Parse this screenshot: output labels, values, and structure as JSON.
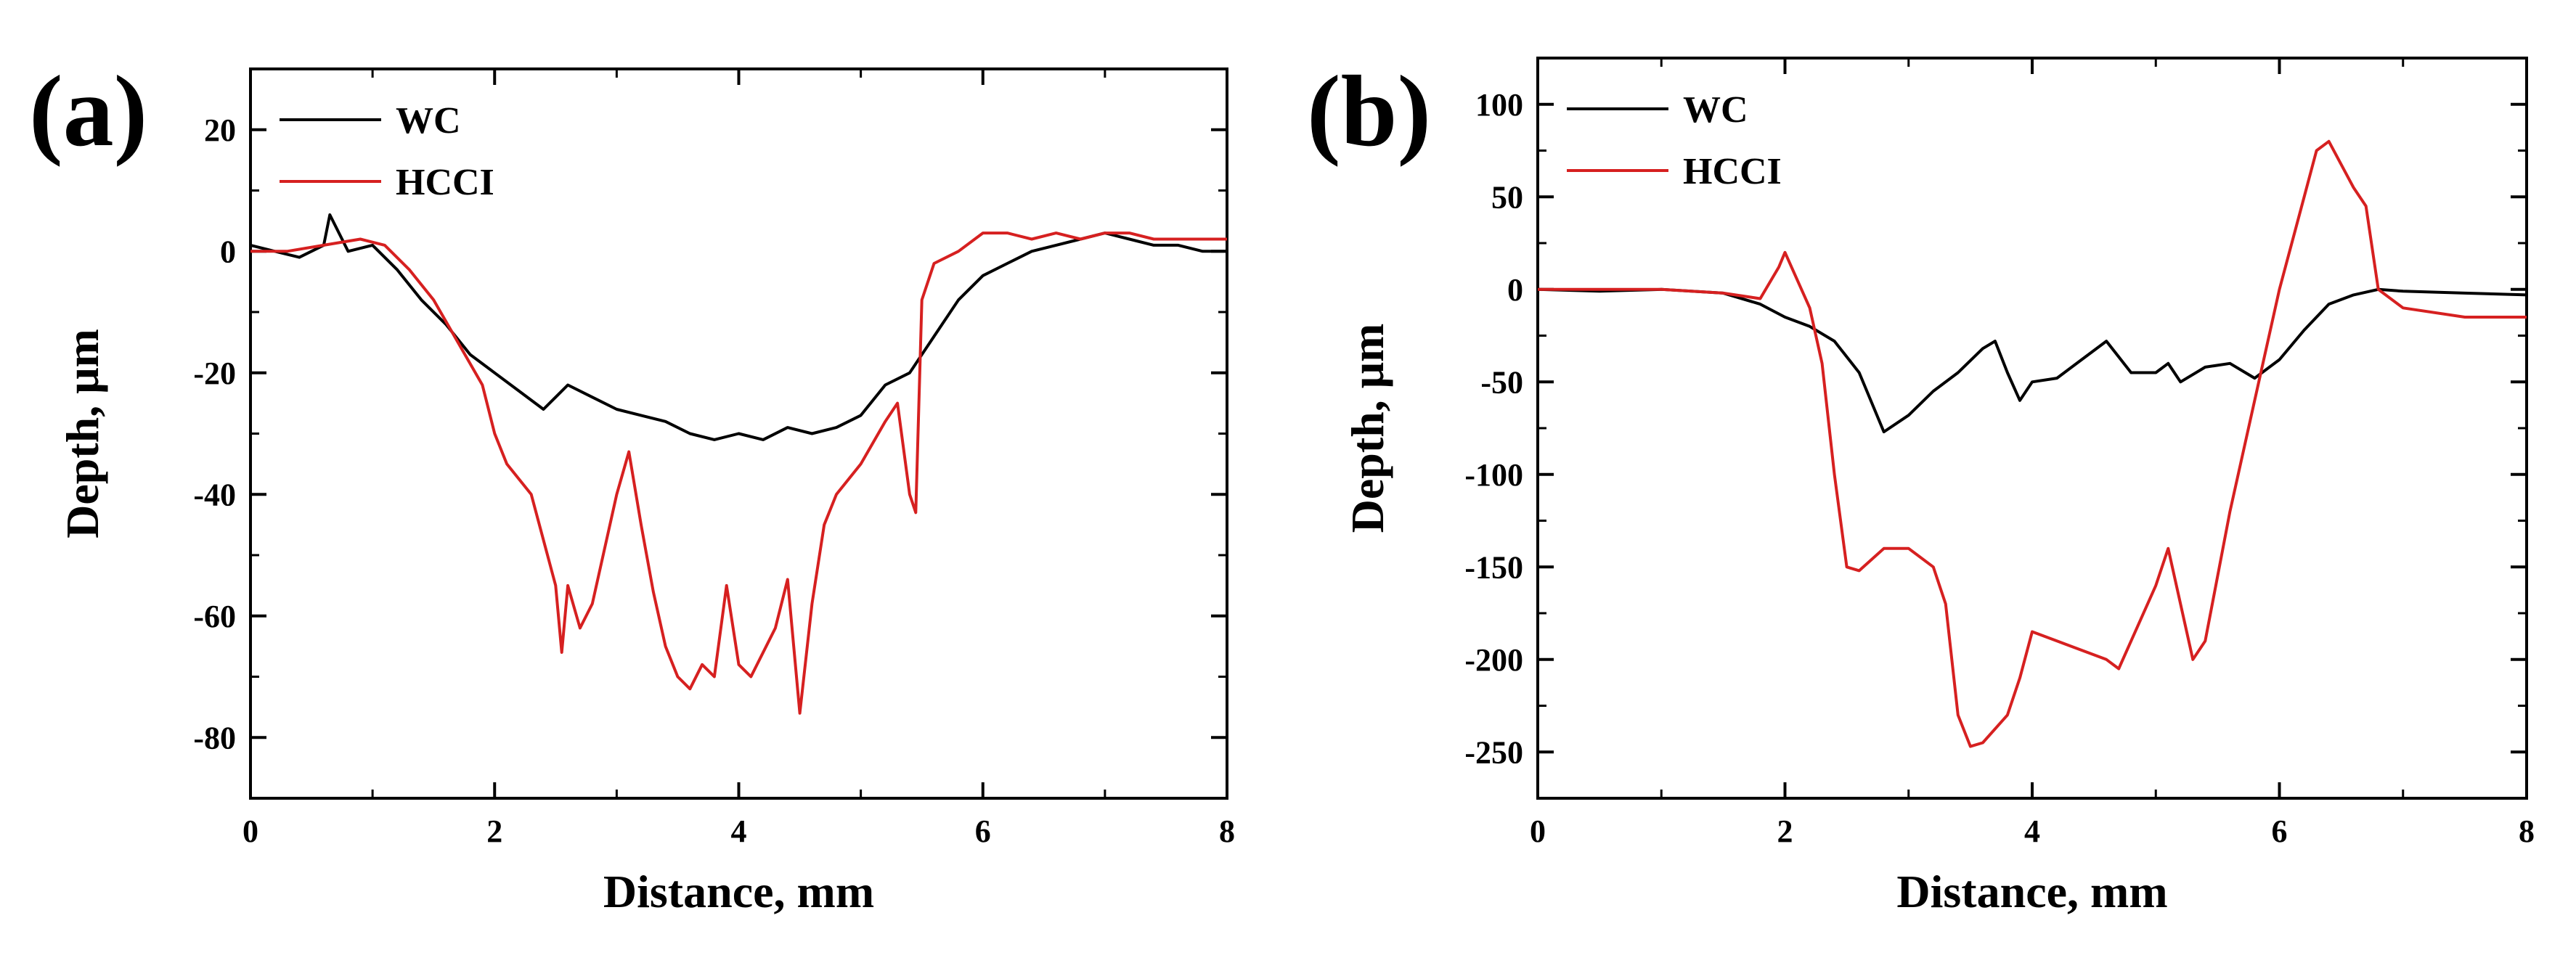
{
  "chart_data": [
    {
      "panel": "(a)",
      "type": "line",
      "xlabel": "Distance, mm",
      "ylabel": "Depth, μm",
      "xlim": [
        0,
        8
      ],
      "ylim": [
        -90,
        30
      ],
      "xticks": [
        0,
        2,
        4,
        6,
        8
      ],
      "yticks": [
        20,
        0,
        -20,
        -40,
        -60,
        -80
      ],
      "legend_position": "top-left",
      "series": [
        {
          "name": "WC",
          "color": "#000000",
          "x": [
            0,
            0.2,
            0.4,
            0.6,
            0.65,
            0.8,
            1.0,
            1.2,
            1.4,
            1.6,
            1.8,
            2.0,
            2.2,
            2.4,
            2.5,
            2.6,
            2.8,
            3.0,
            3.2,
            3.4,
            3.6,
            3.8,
            4.0,
            4.2,
            4.4,
            4.6,
            4.8,
            5.0,
            5.2,
            5.4,
            5.6,
            5.8,
            6.0,
            6.2,
            6.4,
            6.6,
            6.8,
            7.0,
            7.2,
            7.4,
            7.6,
            7.8,
            8.0
          ],
          "y": [
            1,
            0,
            -1,
            1,
            6,
            0,
            1,
            -3,
            -8,
            -12,
            -17,
            -20,
            -23,
            -26,
            -24,
            -22,
            -24,
            -26,
            -27,
            -28,
            -30,
            -31,
            -30,
            -31,
            -29,
            -30,
            -29,
            -27,
            -22,
            -20,
            -14,
            -8,
            -4,
            -2,
            0,
            1,
            2,
            3,
            2,
            1,
            1,
            0,
            0
          ]
        },
        {
          "name": "HCCI",
          "color": "#d62020",
          "x": [
            0,
            0.3,
            0.6,
            0.9,
            1.1,
            1.3,
            1.5,
            1.7,
            1.9,
            2.0,
            2.1,
            2.3,
            2.5,
            2.55,
            2.6,
            2.7,
            2.8,
            3.0,
            3.1,
            3.2,
            3.3,
            3.4,
            3.5,
            3.6,
            3.7,
            3.8,
            3.9,
            4.0,
            4.1,
            4.2,
            4.3,
            4.4,
            4.5,
            4.6,
            4.7,
            4.8,
            5.0,
            5.2,
            5.3,
            5.4,
            5.45,
            5.5,
            5.6,
            5.8,
            6.0,
            6.2,
            6.4,
            6.6,
            6.8,
            7.0,
            7.2,
            7.4,
            7.6,
            7.8,
            8.0
          ],
          "y": [
            0,
            0,
            1,
            2,
            1,
            -3,
            -8,
            -15,
            -22,
            -30,
            -35,
            -40,
            -55,
            -66,
            -55,
            -62,
            -58,
            -40,
            -33,
            -45,
            -56,
            -65,
            -70,
            -72,
            -68,
            -70,
            -55,
            -68,
            -70,
            -66,
            -62,
            -54,
            -76,
            -58,
            -45,
            -40,
            -35,
            -28,
            -25,
            -40,
            -43,
            -8,
            -2,
            0,
            3,
            3,
            2,
            3,
            2,
            3,
            3,
            2,
            2,
            2,
            2
          ]
        }
      ]
    },
    {
      "panel": "(b)",
      "type": "line",
      "xlabel": "Distance, mm",
      "ylabel": "Depth, μm",
      "xlim": [
        0,
        8
      ],
      "ylim": [
        -275,
        125
      ],
      "xticks": [
        0,
        2,
        4,
        6,
        8
      ],
      "yticks": [
        100,
        50,
        0,
        -50,
        -100,
        -150,
        -200,
        -250
      ],
      "legend_position": "top-left",
      "series": [
        {
          "name": "WC",
          "color": "#000000",
          "x": [
            0,
            0.5,
            1.0,
            1.5,
            1.8,
            2.0,
            2.2,
            2.4,
            2.6,
            2.8,
            3.0,
            3.2,
            3.4,
            3.6,
            3.7,
            3.8,
            3.9,
            4.0,
            4.2,
            4.4,
            4.6,
            4.8,
            5.0,
            5.1,
            5.2,
            5.4,
            5.6,
            5.8,
            6.0,
            6.2,
            6.4,
            6.6,
            6.8,
            7.0,
            7.5,
            8.0
          ],
          "y": [
            0,
            -1,
            0,
            -2,
            -8,
            -15,
            -20,
            -28,
            -45,
            -77,
            -68,
            -55,
            -45,
            -32,
            -28,
            -45,
            -60,
            -50,
            -48,
            -38,
            -28,
            -45,
            -45,
            -40,
            -50,
            -42,
            -40,
            -48,
            -38,
            -22,
            -8,
            -3,
            0,
            -1,
            -2,
            -3
          ]
        },
        {
          "name": "HCCI",
          "color": "#d62020",
          "x": [
            0,
            1.0,
            1.5,
            1.8,
            1.95,
            2.0,
            2.2,
            2.3,
            2.4,
            2.5,
            2.6,
            2.8,
            3.0,
            3.2,
            3.3,
            3.4,
            3.5,
            3.6,
            3.8,
            3.9,
            4.0,
            4.2,
            4.4,
            4.6,
            4.7,
            4.8,
            5.0,
            5.1,
            5.2,
            5.3,
            5.4,
            5.6,
            5.8,
            6.0,
            6.2,
            6.3,
            6.4,
            6.6,
            6.7,
            6.8,
            7.0,
            7.5,
            8.0
          ],
          "y": [
            0,
            0,
            -2,
            -5,
            12,
            20,
            -10,
            -40,
            -100,
            -150,
            -152,
            -140,
            -140,
            -150,
            -170,
            -230,
            -247,
            -245,
            -230,
            -210,
            -185,
            -190,
            -195,
            -200,
            -205,
            -190,
            -160,
            -140,
            -170,
            -200,
            -190,
            -120,
            -60,
            0,
            50,
            75,
            80,
            55,
            45,
            0,
            -10,
            -15,
            -15
          ]
        }
      ]
    }
  ]
}
